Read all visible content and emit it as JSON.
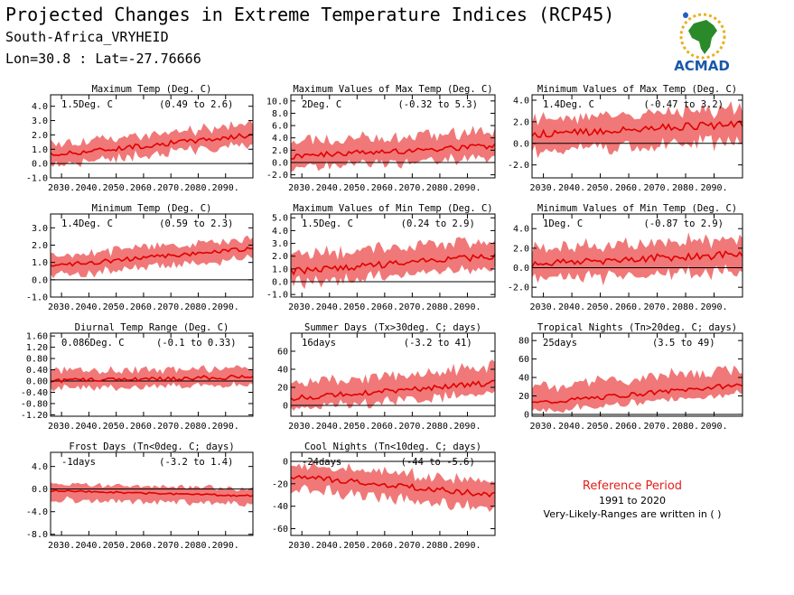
{
  "header": {
    "title": "Projected Changes in Extreme Temperature Indices (RCP45)",
    "location": "South-Africa_VRYHEID",
    "coords": "Lon=30.8 : Lat=-27.76666"
  },
  "logo": {
    "text": "ACMAD"
  },
  "reference": {
    "title": "Reference Period",
    "years": "1991 to 2020",
    "note": "Very-Likely-Ranges are written in ( )"
  },
  "colors": {
    "band": "#f07878",
    "line": "#e00000",
    "zero": "#000000",
    "logo_text": "#1a58a8"
  },
  "chart_data": [
    {
      "type": "area",
      "title": "Maximum Temp (Deg. C)",
      "mean_label": "1.5Deg. C",
      "range_label": "(0.49 to 2.6)",
      "x_start": 2026,
      "x_end": 2100,
      "ylim": [
        -1.0,
        4.8
      ],
      "yticks": [
        -1.0,
        0.0,
        1.0,
        2.0,
        3.0,
        4.0
      ],
      "yfmt": 1,
      "xticks": [
        "2030.",
        "2040.",
        "2050.",
        "2060.",
        "2070.",
        "2080.",
        "2090."
      ],
      "start_mean": 0.6,
      "end_mean": 2.0,
      "lo_spread": 0.7,
      "hi_spread": 0.8,
      "noise": 0.35
    },
    {
      "type": "area",
      "title": "Maximum Values of Max Temp (Deg. C)",
      "mean_label": "2Deg. C",
      "range_label": "(-0.32 to 5.3)",
      "x_start": 2026,
      "x_end": 2100,
      "ylim": [
        -2.5,
        11.0
      ],
      "yticks": [
        -2.0,
        0.0,
        2.0,
        4.0,
        6.0,
        8.0,
        10.0
      ],
      "yfmt": 1,
      "xticks": [
        "2030.",
        "2040.",
        "2050.",
        "2060.",
        "2070.",
        "2080.",
        "2090."
      ],
      "start_mean": 1.0,
      "end_mean": 2.7,
      "lo_spread": 2.0,
      "hi_spread": 2.6,
      "noise": 1.0
    },
    {
      "type": "area",
      "title": "Minimum Values of Max Temp (Deg. C)",
      "mean_label": "1.4Deg. C",
      "range_label": "(-0.47 to 3.2)",
      "x_start": 2026,
      "x_end": 2100,
      "ylim": [
        -3.2,
        4.5
      ],
      "yticks": [
        -2.0,
        0.0,
        2.0,
        4.0
      ],
      "yfmt": 1,
      "xticks": [
        "2030.",
        "2040.",
        "2050.",
        "2060.",
        "2070.",
        "2080.",
        "2090."
      ],
      "start_mean": 0.8,
      "end_mean": 1.8,
      "lo_spread": 1.6,
      "hi_spread": 1.5,
      "noise": 0.7
    },
    {
      "type": "area",
      "title": "Minimum Temp (Deg. C)",
      "mean_label": "1.4Deg. C",
      "range_label": "(0.59 to 2.3)",
      "x_start": 2026,
      "x_end": 2100,
      "ylim": [
        -1.0,
        3.8
      ],
      "yticks": [
        -1.0,
        0.0,
        1.0,
        2.0,
        3.0
      ],
      "yfmt": 1,
      "xticks": [
        "2030.",
        "2040.",
        "2050.",
        "2060.",
        "2070.",
        "2080.",
        "2090."
      ],
      "start_mean": 0.8,
      "end_mean": 1.8,
      "lo_spread": 0.6,
      "hi_spread": 0.6,
      "noise": 0.25
    },
    {
      "type": "area",
      "title": "Maximum Values of Min Temp (Deg. C)",
      "mean_label": "1.5Deg. C",
      "range_label": "(0.24 to 2.9)",
      "x_start": 2026,
      "x_end": 2100,
      "ylim": [
        -1.2,
        5.3
      ],
      "yticks": [
        -1.0,
        0.0,
        1.0,
        2.0,
        3.0,
        4.0,
        5.0
      ],
      "yfmt": 1,
      "xticks": [
        "2030.",
        "2040.",
        "2050.",
        "2060.",
        "2070.",
        "2080.",
        "2090."
      ],
      "start_mean": 0.8,
      "end_mean": 2.0,
      "lo_spread": 1.0,
      "hi_spread": 1.3,
      "noise": 0.5
    },
    {
      "type": "area",
      "title": "Minimum Values of Min Temp (Deg. C)",
      "mean_label": "1Deg. C",
      "range_label": "(-0.87 to 2.9)",
      "x_start": 2026,
      "x_end": 2100,
      "ylim": [
        -3.0,
        5.5
      ],
      "yticks": [
        -2.0,
        0.0,
        2.0,
        4.0
      ],
      "yfmt": 1,
      "xticks": [
        "2030.",
        "2040.",
        "2050.",
        "2060.",
        "2070.",
        "2080.",
        "2090."
      ],
      "start_mean": 0.4,
      "end_mean": 1.4,
      "lo_spread": 1.7,
      "hi_spread": 1.7,
      "noise": 0.8
    },
    {
      "type": "area",
      "title": "Diurnal Temp Range (Deg. C)",
      "mean_label": "0.086Deg. C",
      "range_label": "(-0.1 to 0.33)",
      "x_start": 2026,
      "x_end": 2100,
      "ylim": [
        -1.25,
        1.7
      ],
      "yticks": [
        -1.2,
        -0.8,
        -0.4,
        0.0,
        0.4,
        0.8,
        1.2,
        1.6
      ],
      "yfmt": 2,
      "xticks": [
        "2030.",
        "2040.",
        "2050.",
        "2060.",
        "2070.",
        "2080.",
        "2090."
      ],
      "start_mean": 0.0,
      "end_mean": 0.15,
      "lo_spread": 0.3,
      "hi_spread": 0.35,
      "noise": 0.15
    },
    {
      "type": "area",
      "title": "Summer Days (Tx>30deg. C; days)",
      "mean_label": "16days",
      "range_label": "(-3.2 to 41)",
      "x_start": 2026,
      "x_end": 2100,
      "ylim": [
        -12,
        80
      ],
      "yticks": [
        0,
        20,
        40,
        60
      ],
      "yfmt": 0,
      "xticks": [
        "2030.",
        "2040.",
        "2050.",
        "2060.",
        "2070.",
        "2080.",
        "2090."
      ],
      "start_mean": 8,
      "end_mean": 25,
      "lo_spread": 12,
      "hi_spread": 18,
      "noise": 6
    },
    {
      "type": "area",
      "title": "Tropical Nights (Tn>20deg. C; days)",
      "mean_label": "25days",
      "range_label": "(3.5 to 49)",
      "x_start": 2026,
      "x_end": 2100,
      "ylim": [
        -2,
        88
      ],
      "yticks": [
        0,
        20,
        40,
        60,
        80
      ],
      "yfmt": 0,
      "xticks": [
        "2030.",
        "2040.",
        "2050.",
        "2060.",
        "2070.",
        "2080.",
        "2090."
      ],
      "start_mean": 12,
      "end_mean": 32,
      "lo_spread": 10,
      "hi_spread": 18,
      "noise": 5
    },
    {
      "type": "area",
      "title": "Frost Days (Tn<0deg. C; days)",
      "mean_label": "-1days",
      "range_label": "(-3.2 to 1.4)",
      "x_start": 2026,
      "x_end": 2100,
      "ylim": [
        -8.2,
        6.5
      ],
      "yticks": [
        -8.0,
        -4.0,
        0.0,
        4.0
      ],
      "yfmt": 1,
      "xticks": [
        "2030.",
        "2040.",
        "2050.",
        "2060.",
        "2070.",
        "2080.",
        "2090."
      ],
      "start_mean": -0.3,
      "end_mean": -1.2,
      "lo_spread": 1.6,
      "hi_spread": 1.3,
      "noise": 0.3
    },
    {
      "type": "area",
      "title": "Cool Nights (Tn<10deg. C; days)",
      "mean_label": "-24days",
      "range_label": "(-44 to -5.6)",
      "x_start": 2026,
      "x_end": 2100,
      "ylim": [
        -66,
        8
      ],
      "yticks": [
        -60,
        -40,
        -20,
        0
      ],
      "yfmt": 0,
      "xticks": [
        "2030.",
        "2040.",
        "2050.",
        "2060.",
        "2070.",
        "2080.",
        "2090."
      ],
      "start_mean": -13,
      "end_mean": -30,
      "lo_spread": 12,
      "hi_spread": 12,
      "noise": 5
    }
  ]
}
